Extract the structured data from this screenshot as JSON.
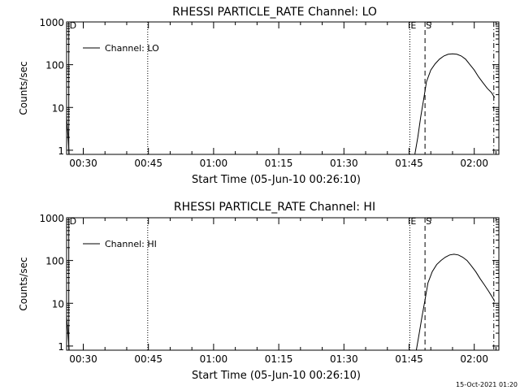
{
  "footer": {
    "timestamp": "15-Oct-2021 01:20"
  },
  "chart_data": [
    {
      "type": "line",
      "title": "RHESSI PARTICLE_RATE Channel: LO",
      "xlabel": "Start Time (05-Jun-10 00:26:10)",
      "ylabel": "Counts/sec",
      "yscale": "log",
      "ylim": [
        0.8,
        1000
      ],
      "xlim": [
        "00:26:10",
        "02:05:40"
      ],
      "x_ticks": [
        "00:30",
        "00:45",
        "01:00",
        "01:15",
        "01:30",
        "01:45",
        "02:00"
      ],
      "y_ticks": [
        "1",
        "10",
        "100",
        "1000"
      ],
      "legend": {
        "position": "top-left",
        "entries": [
          "Channel: LO"
        ]
      },
      "markers": [
        {
          "label": "D",
          "time": "00:26:40",
          "style": "solid"
        },
        {
          "label": "",
          "time": "00:44:50",
          "style": "dotted"
        },
        {
          "label": "E",
          "time": "01:45:10",
          "style": "dotted"
        },
        {
          "label": "S",
          "time": "01:48:40",
          "style": "dashed"
        },
        {
          "label": "",
          "time": "02:04:30",
          "style": "dashdot"
        }
      ],
      "series": [
        {
          "x": [
            "00:26:10",
            "00:26:30",
            "00:26:45",
            "01:46:20",
            "01:47:00",
            "01:47:40",
            "01:48:20",
            "01:49:00",
            "01:50:00",
            "01:51:00",
            "01:52:00",
            "01:53:00",
            "01:54:00",
            "01:55:00",
            "01:56:00",
            "01:57:00",
            "01:58:00",
            "01:59:00",
            "02:00:00",
            "02:01:00",
            "02:02:00",
            "02:03:00",
            "02:04:00",
            "02:04:40"
          ],
          "y": [
            6,
            2,
            0.8,
            0.8,
            2,
            6,
            15,
            40,
            75,
            105,
            135,
            160,
            175,
            180,
            175,
            160,
            135,
            100,
            75,
            52,
            38,
            28,
            22,
            17
          ]
        }
      ]
    },
    {
      "type": "line",
      "title": "RHESSI PARTICLE_RATE Channel: HI",
      "xlabel": "Start Time (05-Jun-10 00:26:10)",
      "ylabel": "Counts/sec",
      "yscale": "log",
      "ylim": [
        0.8,
        1000
      ],
      "xlim": [
        "00:26:10",
        "02:05:40"
      ],
      "x_ticks": [
        "00:30",
        "00:45",
        "01:00",
        "01:15",
        "01:30",
        "01:45",
        "02:00"
      ],
      "y_ticks": [
        "1",
        "10",
        "100",
        "1000"
      ],
      "legend": {
        "position": "top-left",
        "entries": [
          "Channel: HI"
        ]
      },
      "markers": [
        {
          "label": "D",
          "time": "00:26:40",
          "style": "solid"
        },
        {
          "label": "",
          "time": "00:44:50",
          "style": "dotted"
        },
        {
          "label": "E",
          "time": "01:45:10",
          "style": "dotted"
        },
        {
          "label": "S",
          "time": "01:48:40",
          "style": "dashed"
        },
        {
          "label": "",
          "time": "02:04:30",
          "style": "dashdot"
        }
      ],
      "series": [
        {
          "x": [
            "00:26:10",
            "00:26:30",
            "00:26:45",
            "01:46:40",
            "01:47:20",
            "01:48:00",
            "01:48:40",
            "01:49:20",
            "01:50:20",
            "01:51:20",
            "01:52:20",
            "01:53:20",
            "01:54:20",
            "01:55:20",
            "01:56:20",
            "01:57:20",
            "01:58:20",
            "01:59:20",
            "02:00:20",
            "02:01:20",
            "02:02:20",
            "02:03:20",
            "02:04:20",
            "02:04:40"
          ],
          "y": [
            5,
            1.8,
            0.8,
            0.8,
            2,
            5,
            12,
            30,
            55,
            80,
            100,
            120,
            135,
            140,
            135,
            120,
            100,
            75,
            55,
            38,
            27,
            19,
            13,
            11
          ]
        }
      ]
    }
  ]
}
